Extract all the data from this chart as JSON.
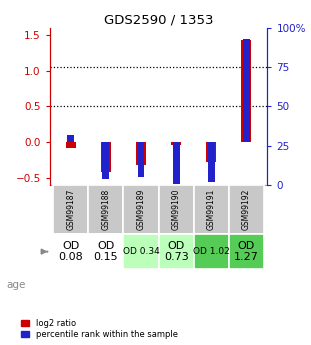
{
  "title": "GDS2590 / 1353",
  "samples": [
    "GSM99187",
    "GSM99188",
    "GSM99189",
    "GSM99190",
    "GSM99191",
    "GSM99192"
  ],
  "log2_ratio": [
    -0.08,
    -0.42,
    -0.32,
    -0.04,
    -0.28,
    1.42
  ],
  "percentile_rank": [
    32,
    4,
    5,
    1,
    2,
    93
  ],
  "ylim_left": [
    -0.6,
    1.6
  ],
  "ylim_right": [
    0,
    100
  ],
  "yticks_left": [
    -0.5,
    0.0,
    0.5,
    1.0,
    1.5
  ],
  "yticks_right": [
    0,
    25,
    50,
    75,
    100
  ],
  "bar_color_red": "#cc0000",
  "bar_color_blue": "#2222cc",
  "age_labels": [
    "OD\n0.08",
    "OD\n0.15",
    "OD 0.34",
    "OD\n0.73",
    "OD 1.02",
    "OD\n1.27"
  ],
  "age_bg_colors": [
    "#ffffff",
    "#ffffff",
    "#bbffbb",
    "#bbffbb",
    "#55cc55",
    "#55cc55"
  ],
  "age_font_sizes": [
    8,
    8,
    6.5,
    8,
    6.5,
    8
  ],
  "sample_bg_color": "#c8c8c8",
  "left_axis_color": "#cc0000",
  "right_axis_color": "#2222cc",
  "dashed_zero_color": "#cc0000",
  "dotted_line_color": "#000000"
}
